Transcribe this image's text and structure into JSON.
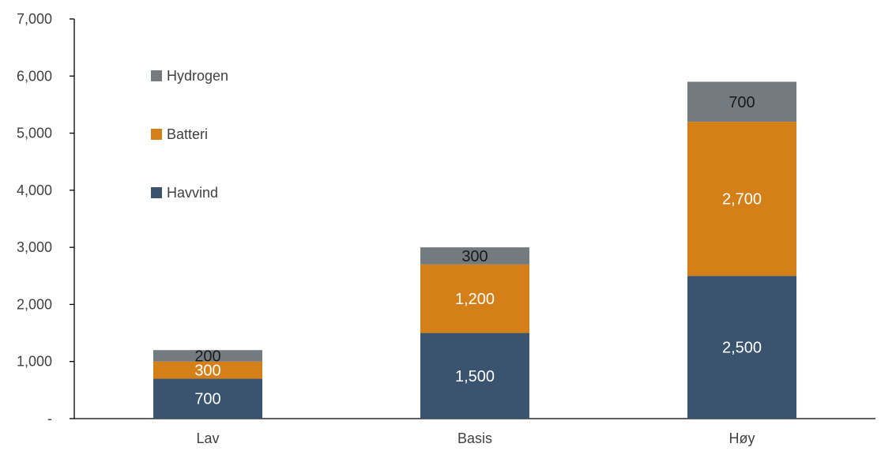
{
  "chart_data": {
    "type": "bar",
    "stacked": true,
    "categories": [
      "Lav",
      "Basis",
      "Høy"
    ],
    "series": [
      {
        "name": "Havvind",
        "values": [
          700,
          1500,
          2500
        ],
        "color": "#3a5470",
        "label_color": "#ffffff"
      },
      {
        "name": "Batteri",
        "values": [
          300,
          1200,
          2700
        ],
        "color": "#d57f19",
        "label_color": "#ffffff"
      },
      {
        "name": "Hydrogen",
        "values": [
          200,
          300,
          700
        ],
        "color": "#737a80",
        "label_color": "#1a1a1a"
      }
    ],
    "data_labels": [
      [
        "700",
        "1,500",
        "2,500"
      ],
      [
        "300",
        "1,200",
        "2,700"
      ],
      [
        "200",
        "300",
        "700"
      ]
    ],
    "yticks": [
      {
        "value": 0,
        "label": "-"
      },
      {
        "value": 1000,
        "label": "1,000"
      },
      {
        "value": 2000,
        "label": "2,000"
      },
      {
        "value": 3000,
        "label": "3,000"
      },
      {
        "value": 4000,
        "label": "4,000"
      },
      {
        "value": 5000,
        "label": "5,000"
      },
      {
        "value": 6000,
        "label": "6,000"
      },
      {
        "value": 7000,
        "label": "7,000"
      }
    ],
    "ylim": [
      0,
      7000
    ],
    "grid": false,
    "legend": {
      "placement": "top-left",
      "order": [
        "Hydrogen",
        "Batteri",
        "Havvind"
      ]
    },
    "title": "",
    "xlabel": "",
    "ylabel": ""
  }
}
